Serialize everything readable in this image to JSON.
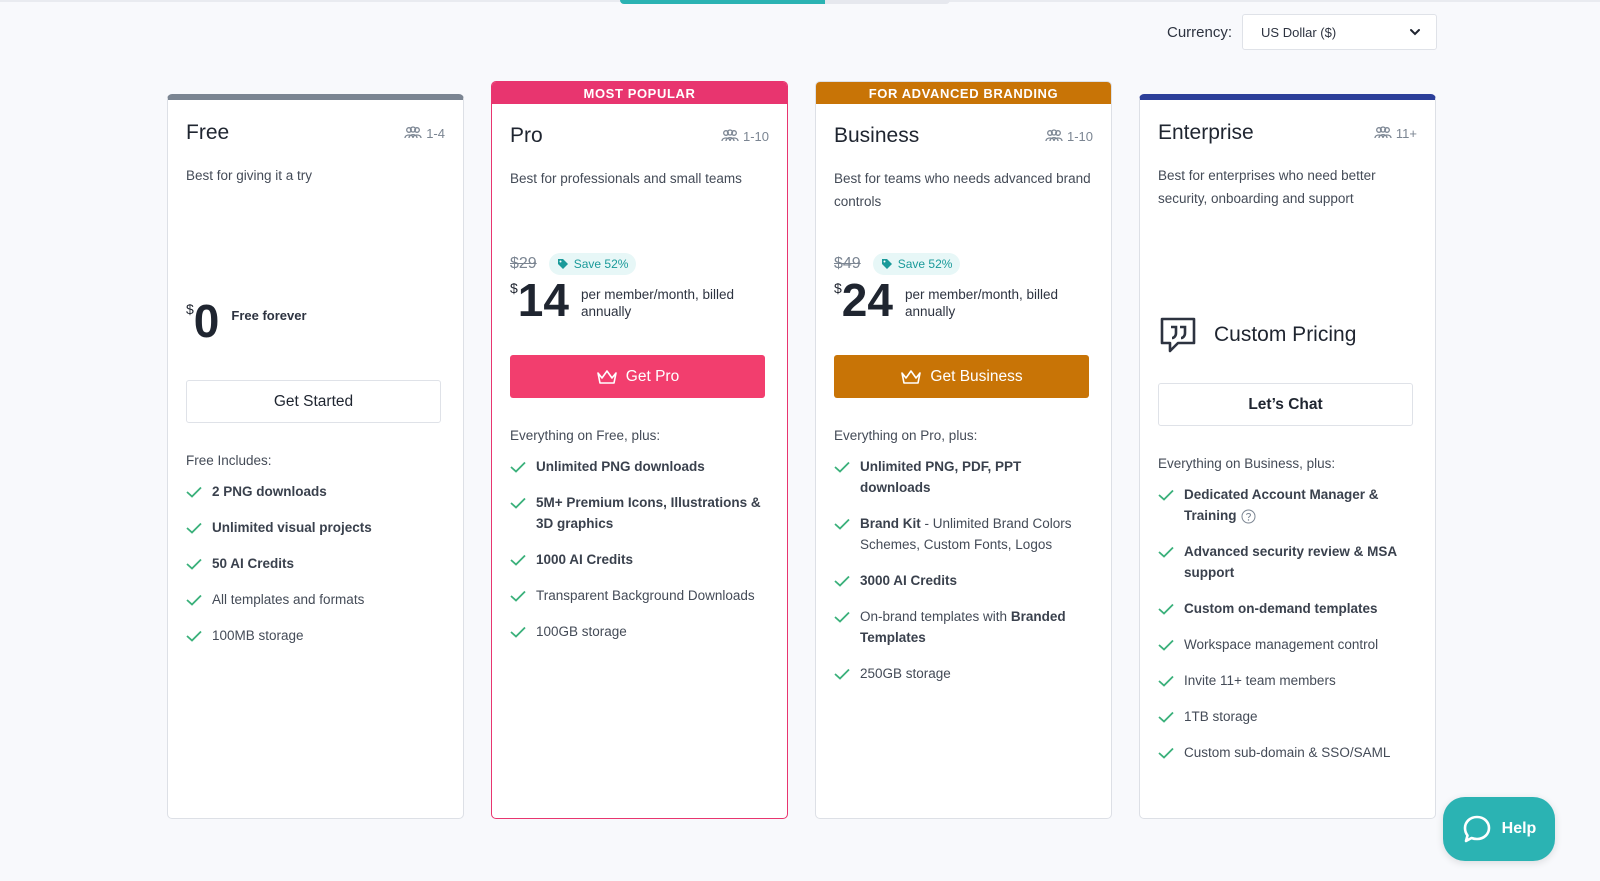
{
  "currency": {
    "label": "Currency:",
    "selected": "US Dollar ($)"
  },
  "plans": [
    {
      "name": "Free",
      "seats": "1-4",
      "description": "Best for giving it a try",
      "currency_symbol": "$",
      "price": "0",
      "price_note": "Free forever",
      "cta": "Get Started",
      "includes_title": "Free Includes:",
      "features": [
        "2 PNG downloads",
        "Unlimited visual projects",
        "50 AI Credits",
        "All templates and formats",
        "100MB storage"
      ]
    },
    {
      "ribbon": "MOST POPULAR",
      "name": "Pro",
      "seats": "1-10",
      "description": "Best for professionals and small teams",
      "old_price": "$29",
      "save": "Save 52%",
      "currency_symbol": "$",
      "price": "14",
      "price_note": "per member/month, billed annually",
      "cta": "Get Pro",
      "includes_title": "Everything on Free, plus:",
      "features": [
        "Unlimited PNG downloads",
        "5M+ Premium Icons, Illustrations & 3D graphics",
        "1000 AI Credits",
        "Transparent Background Downloads",
        "100GB storage"
      ]
    },
    {
      "ribbon": "FOR ADVANCED BRANDING",
      "name": "Business",
      "seats": "1-10",
      "description": "Best for teams who needs advanced brand controls",
      "old_price": "$49",
      "save": "Save 52%",
      "currency_symbol": "$",
      "price": "24",
      "price_note": "per member/month, billed annually",
      "cta": "Get Business",
      "includes_title": "Everything on Pro, plus:",
      "features": [
        "Unlimited PNG, PDF, PPT downloads",
        "Brand Kit",
        " - Unlimited Brand Colors Schemes, Custom Fonts, Logos",
        "3000 AI Credits",
        "On-brand templates with ",
        "Branded Templates",
        "250GB storage"
      ]
    },
    {
      "name": "Enterprise",
      "seats": "11+",
      "description": "Best for enterprises who need better security, onboarding and support",
      "custom_pricing": "Custom Pricing",
      "cta": "Let’s Chat",
      "includes_title": "Everything on Business, plus:",
      "features": [
        "Dedicated Account Manager & Training",
        "Advanced security review & MSA support",
        "Custom on-demand templates",
        "Workspace management control",
        "Invite 11+ team members",
        "1TB storage",
        "Custom sub-domain & SSO/SAML"
      ]
    }
  ],
  "help": {
    "label": "Help"
  },
  "colors": {
    "pro": "#e8356f",
    "business": "#c87406",
    "enterprise": "#2c3f9a",
    "free": "#7b8592",
    "accent": "#2bb3b3",
    "check": "#3ab07a"
  },
  "icons": {
    "seats": "users-icon",
    "check": "check-icon",
    "crown": "crown-icon",
    "tag": "tag-icon",
    "quote": "quote-bubble-icon",
    "help": "chat-bubble-icon",
    "chevron": "chevron-down-icon"
  }
}
